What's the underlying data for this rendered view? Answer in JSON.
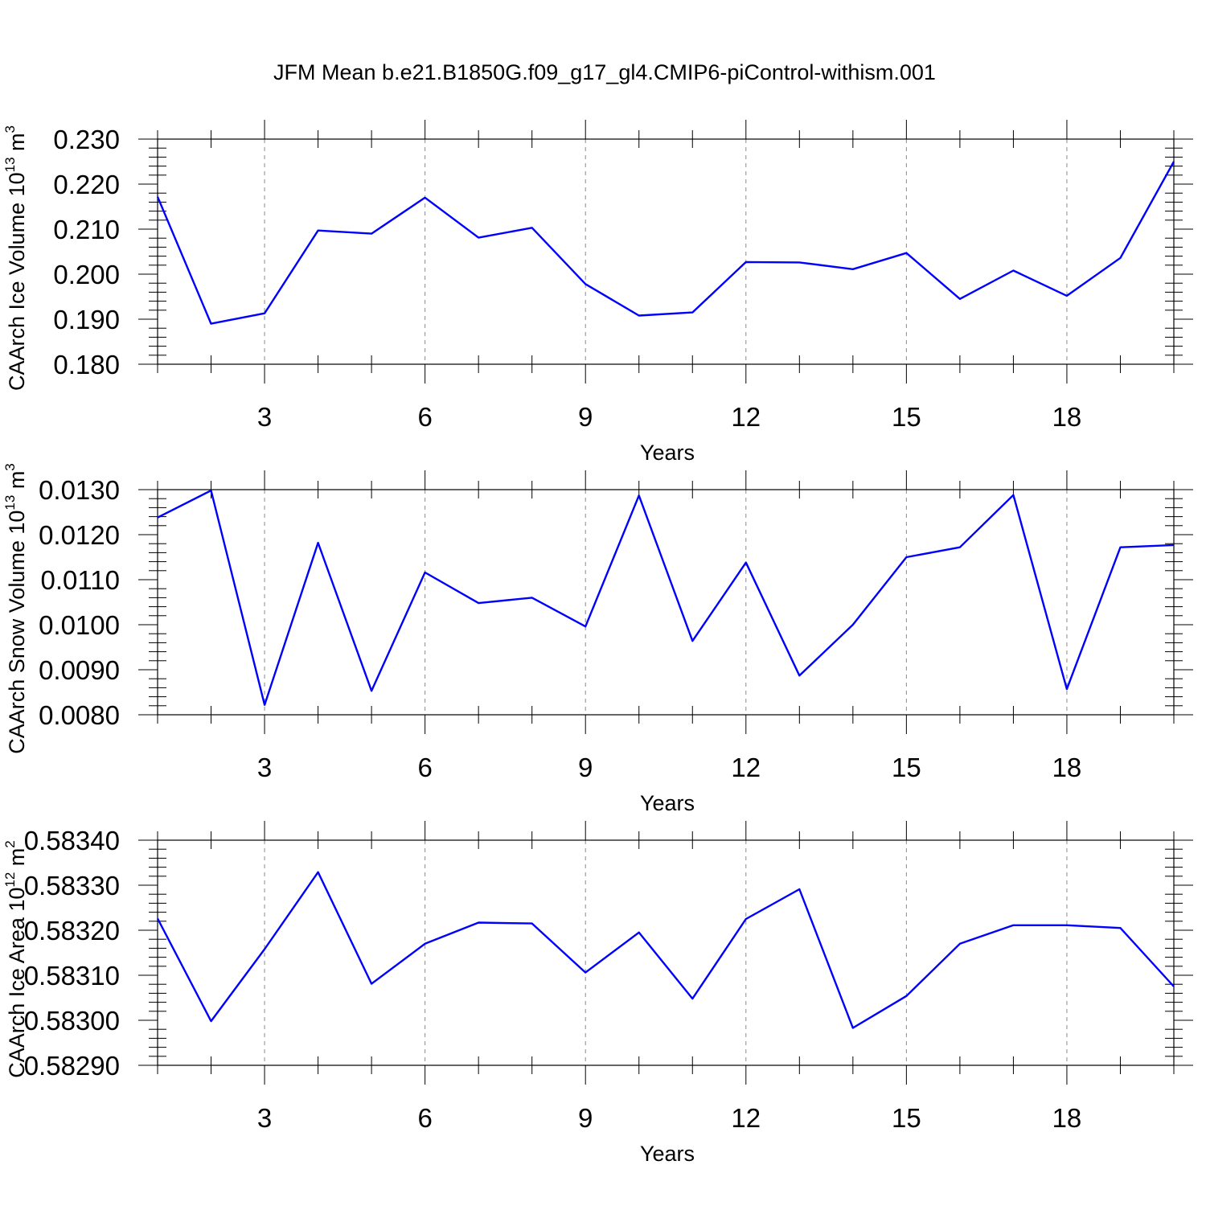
{
  "figure": {
    "title": "JFM Mean b.e21.B1850G.f09_g17_gl4.CMIP6-piControl-withism.001"
  },
  "colors": {
    "series": "#0000ff",
    "axis": "#000000",
    "grid": "#8a8a8a",
    "background": "#ffffff"
  },
  "chart_data": [
    {
      "type": "line",
      "title": "",
      "xlabel": "Years",
      "ylabel_text": "CAArch Ice Volume 10",
      "ylabel_exp": "13",
      "ylabel_unit": "m",
      "ylabel_unit_exp": "3",
      "xlim": [
        1,
        20
      ],
      "ylim": [
        0.18,
        0.23
      ],
      "xticks": [
        3,
        6,
        9,
        12,
        15,
        18
      ],
      "xtick_labels": [
        "3",
        "6",
        "9",
        "12",
        "15",
        "18"
      ],
      "yticks": [
        0.18,
        0.19,
        0.2,
        0.21,
        0.22,
        0.23
      ],
      "ytick_labels": [
        "0.180",
        "0.190",
        "0.200",
        "0.210",
        "0.220",
        "0.230"
      ],
      "grid": "vertical dashed at x ticks",
      "x": [
        1,
        2,
        3,
        4,
        5,
        6,
        7,
        8,
        9,
        10,
        11,
        12,
        13,
        14,
        15,
        16,
        17,
        18,
        19,
        20
      ],
      "series": [
        {
          "name": "CAArch Ice Volume",
          "values": [
            0.2172,
            0.189,
            0.1913,
            0.2097,
            0.209,
            0.217,
            0.2081,
            0.2103,
            0.1978,
            0.1908,
            0.1915,
            0.2027,
            0.2026,
            0.2011,
            0.2047,
            0.1945,
            0.2008,
            0.1952,
            0.2036,
            0.225
          ]
        }
      ]
    },
    {
      "type": "line",
      "title": "",
      "xlabel": "Years",
      "ylabel_text": "CAArch Snow Volume 10",
      "ylabel_exp": "13",
      "ylabel_unit": "m",
      "ylabel_unit_exp": "3",
      "xlim": [
        1,
        20
      ],
      "ylim": [
        0.008,
        0.013
      ],
      "xticks": [
        3,
        6,
        9,
        12,
        15,
        18
      ],
      "xtick_labels": [
        "3",
        "6",
        "9",
        "12",
        "15",
        "18"
      ],
      "yticks": [
        0.008,
        0.009,
        0.01,
        0.011,
        0.012,
        0.013
      ],
      "ytick_labels": [
        "0.0080",
        "0.0090",
        "0.0100",
        "0.0110",
        "0.0120",
        "0.0130"
      ],
      "grid": "vertical dashed at x ticks",
      "x": [
        1,
        2,
        3,
        4,
        5,
        6,
        7,
        8,
        9,
        10,
        11,
        12,
        13,
        14,
        15,
        16,
        17,
        18,
        19,
        20
      ],
      "series": [
        {
          "name": "CAArch Snow Volume",
          "values": [
            0.01238,
            0.01298,
            0.00822,
            0.01182,
            0.00853,
            0.01116,
            0.01048,
            0.0106,
            0.00996,
            0.01287,
            0.00964,
            0.01138,
            0.00887,
            0.01,
            0.0115,
            0.01172,
            0.01288,
            0.00857,
            0.01172,
            0.01177
          ]
        }
      ]
    },
    {
      "type": "line",
      "title": "",
      "xlabel": "Years",
      "ylabel_text": "CAArch Ice Area 10",
      "ylabel_exp": "12",
      "ylabel_unit": "m",
      "ylabel_unit_exp": "2",
      "xlim": [
        1,
        20
      ],
      "ylim": [
        0.5829,
        0.5834
      ],
      "xticks": [
        3,
        6,
        9,
        12,
        15,
        18
      ],
      "xtick_labels": [
        "3",
        "6",
        "9",
        "12",
        "15",
        "18"
      ],
      "yticks": [
        0.5829,
        0.583,
        0.5831,
        0.5832,
        0.5833,
        0.5834
      ],
      "ytick_labels": [
        "0.58290",
        "0.58300",
        "0.58310",
        "0.58320",
        "0.58330",
        "0.58340"
      ],
      "grid": "vertical dashed at x ticks",
      "x": [
        1,
        2,
        3,
        4,
        5,
        6,
        7,
        8,
        9,
        10,
        11,
        12,
        13,
        14,
        15,
        16,
        17,
        18,
        19,
        20
      ],
      "series": [
        {
          "name": "CAArch Ice Area",
          "values": [
            0.583226,
            0.582998,
            0.583158,
            0.583329,
            0.583081,
            0.58317,
            0.583217,
            0.583215,
            0.583106,
            0.583195,
            0.583048,
            0.583225,
            0.583291,
            0.582983,
            0.583054,
            0.58317,
            0.583211,
            0.583211,
            0.583205,
            0.583075
          ]
        }
      ]
    }
  ]
}
